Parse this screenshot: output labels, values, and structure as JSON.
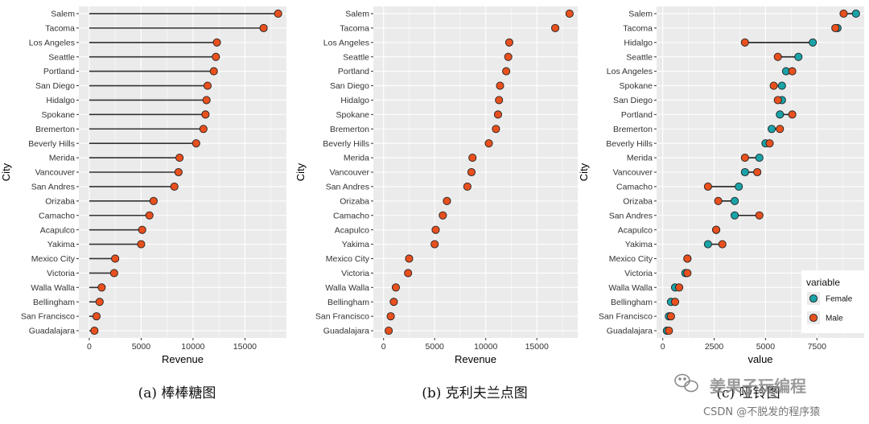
{
  "chart_data": [
    {
      "type": "lollipop",
      "caption": "(a)  棒棒糖图",
      "xlabel": "Revenue",
      "ylabel": "City",
      "xlim": [
        -1000,
        19000
      ],
      "xticks": [
        "0",
        "5000",
        "10000",
        "15000"
      ],
      "categories": [
        "Salem",
        "Tacoma",
        "Los Angeles",
        "Seattle",
        "Portland",
        "San Diego",
        "Hidalgo",
        "Spokane",
        "Bremerton",
        "Beverly Hills",
        "Merida",
        "Vancouver",
        "San Andres",
        "Orizaba",
        "Camacho",
        "Acapulco",
        "Yakima",
        "Mexico City",
        "Victoria",
        "Walla Walla",
        "Bellingham",
        "San Francisco",
        "Guadalajara"
      ],
      "values": [
        18200,
        16800,
        12300,
        12200,
        12000,
        11400,
        11300,
        11200,
        11000,
        10300,
        8700,
        8600,
        8200,
        6200,
        5800,
        5100,
        5000,
        2500,
        2400,
        1200,
        1000,
        700,
        500
      ]
    },
    {
      "type": "dot",
      "caption": "(b)  克利夫兰点图",
      "xlabel": "Revenue",
      "ylabel": "City",
      "xlim": [
        -1000,
        19000
      ],
      "xticks": [
        "0",
        "5000",
        "10000",
        "15000"
      ],
      "categories": [
        "Salem",
        "Tacoma",
        "Los Angeles",
        "Seattle",
        "Portland",
        "San Diego",
        "Hidalgo",
        "Spokane",
        "Bremerton",
        "Beverly Hills",
        "Merida",
        "Vancouver",
        "San Andres",
        "Orizaba",
        "Camacho",
        "Acapulco",
        "Yakima",
        "Mexico City",
        "Victoria",
        "Walla Walla",
        "Bellingham",
        "San Francisco",
        "Guadalajara"
      ],
      "values": [
        18200,
        16800,
        12300,
        12200,
        12000,
        11400,
        11300,
        11200,
        11000,
        10300,
        8700,
        8600,
        8200,
        6200,
        5800,
        5100,
        5000,
        2500,
        2400,
        1200,
        1000,
        700,
        500
      ]
    },
    {
      "type": "dumbbell",
      "caption": "(c)  哑铃图",
      "xlabel": "value",
      "ylabel": "City",
      "xlim": [
        -300,
        9800
      ],
      "xticks": [
        "0",
        "2500",
        "5000",
        "7500"
      ],
      "categories": [
        "Salem",
        "Tacoma",
        "Hidalgo",
        "Seattle",
        "Los Angeles",
        "Spokane",
        "San Diego",
        "Portland",
        "Bremerton",
        "Beverly Hills",
        "Merida",
        "Vancouver",
        "Camacho",
        "Orizaba",
        "San Andres",
        "Acapulco",
        "Yakima",
        "Mexico City",
        "Victoria",
        "Walla Walla",
        "Bellingham",
        "San Francisco",
        "Guadalajara"
      ],
      "legend": {
        "title": "variable",
        "position": "right",
        "entries": [
          "Female",
          "Male"
        ]
      },
      "series": [
        {
          "name": "Female",
          "values": [
            9400,
            8500,
            7300,
            6600,
            6000,
            5800,
            5800,
            5700,
            5300,
            5000,
            4700,
            4000,
            3700,
            3500,
            3500,
            2600,
            2200,
            1200,
            1100,
            600,
            400,
            300,
            200
          ]
        },
        {
          "name": "Male",
          "values": [
            8800,
            8400,
            4000,
            5600,
            6300,
            5400,
            5600,
            6300,
            5700,
            5200,
            4000,
            4600,
            2200,
            2700,
            4700,
            2600,
            2900,
            1200,
            1200,
            800,
            600,
            400,
            300
          ]
        }
      ]
    }
  ],
  "colors": {
    "female": "#1aa3a8",
    "male": "#e8501e",
    "panel": "#ebebeb",
    "grid": "#ffffff",
    "stem": "#333333"
  },
  "watermark": {
    "line1": "姜果子玩编程",
    "line2": "CSDN @不脱发的程序猿",
    "icon": "wechat-icon"
  }
}
